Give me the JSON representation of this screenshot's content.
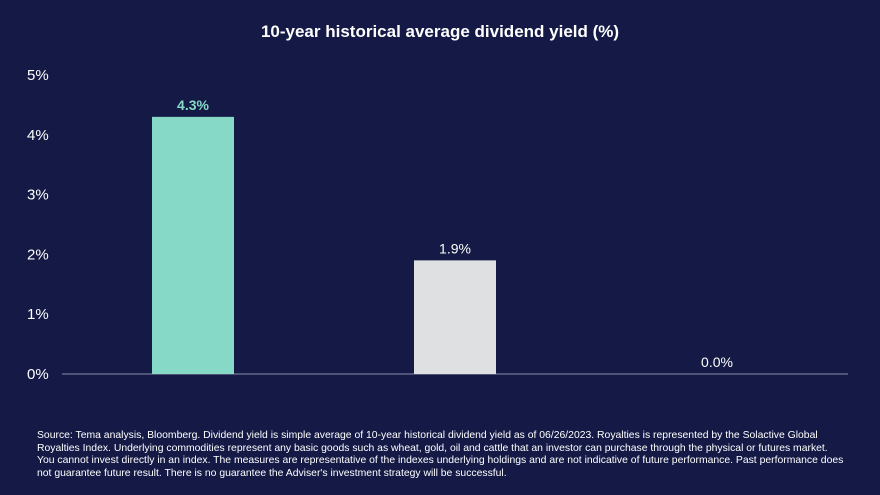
{
  "colors": {
    "background": "#141a45",
    "bar_royalties": "#86d9c6",
    "bar_commodities": "#dfe0e2",
    "label_royalties": "#86d9c6",
    "axis": "#8a8fa8",
    "text": "#ffffff"
  },
  "chart_data": {
    "type": "bar",
    "title": "10-year historical average dividend yield (%)",
    "categories": [
      "",
      "",
      ""
    ],
    "values": [
      4.3,
      1.9,
      0.0
    ],
    "data_labels": [
      "4.3%",
      "1.9%",
      "0.0%"
    ],
    "ylim": [
      0,
      5
    ],
    "yticks": [
      0,
      1,
      2,
      3,
      4,
      5
    ],
    "ytick_labels": [
      "0%",
      "1%",
      "2%",
      "3%",
      "4%",
      "5%"
    ],
    "xlabel": "",
    "ylabel": "",
    "grid": false,
    "legend": "none"
  },
  "footnote": "Source: Tema analysis, Bloomberg. Dividend yield is simple average of 10-year historical dividend yield as of 06/26/2023. Royalties is represented by the Solactive Global Royalties Index. Underlying commodities represent any basic goods such as wheat, gold, oil and cattle that an investor can purchase through the physical or futures market. You cannot invest directly in an index. The measures are representative of the indexes underlying holdings and are not indicative of future performance. Past performance does not guarantee future result. There is no guarantee the Adviser's investment strategy will be successful."
}
